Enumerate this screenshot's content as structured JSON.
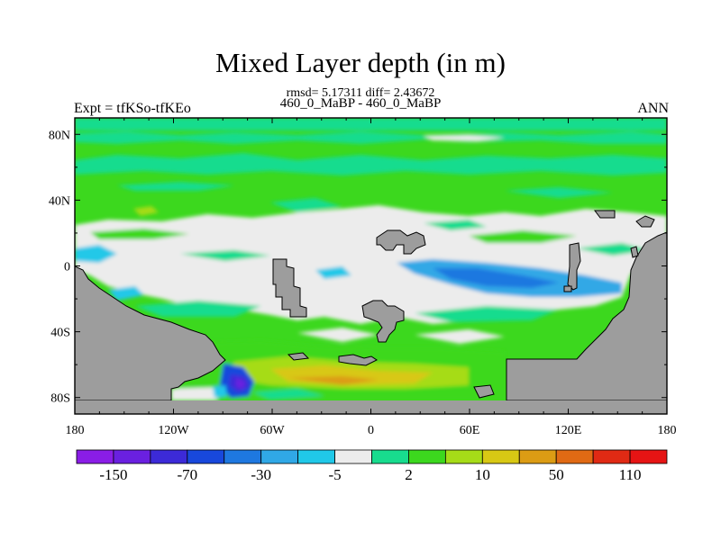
{
  "chart_data": {
    "type": "heatmap",
    "title": "Mixed Layer depth (in m)",
    "stats_line": "rmsd= 5.17311  diff= 2.43672",
    "subtitle": "460_0_MaBP - 460_0_MaBP",
    "left_label": "Expt = tfKSo-tfKEo",
    "right_label": "ANN",
    "x_ticks": [
      "180",
      "120W",
      "60W",
      "0",
      "60E",
      "120E",
      "180"
    ],
    "x_tick_lons": [
      -180,
      -120,
      -60,
      0,
      60,
      120,
      180
    ],
    "y_ticks": [
      "80N",
      "40N",
      "0",
      "40S",
      "80S"
    ],
    "y_tick_lats": [
      80,
      40,
      0,
      -40,
      -80
    ],
    "xlim": [
      -180,
      180
    ],
    "ylim": [
      -90,
      90
    ],
    "colorbar": {
      "colors": [
        "#8a1de6",
        "#6a20e0",
        "#3c2ad8",
        "#1848dc",
        "#1e78e0",
        "#30a8e6",
        "#20c8e8",
        "#ececec",
        "#18dc8e",
        "#3cd81e",
        "#a6dc18",
        "#d8c814",
        "#dc9c14",
        "#e06a14",
        "#e02a14",
        "#e61414"
      ],
      "labels": [
        "-150",
        "-70",
        "-30",
        "-5",
        "2",
        "10",
        "50",
        "110"
      ]
    },
    "land_color": "#9d9d9d"
  }
}
